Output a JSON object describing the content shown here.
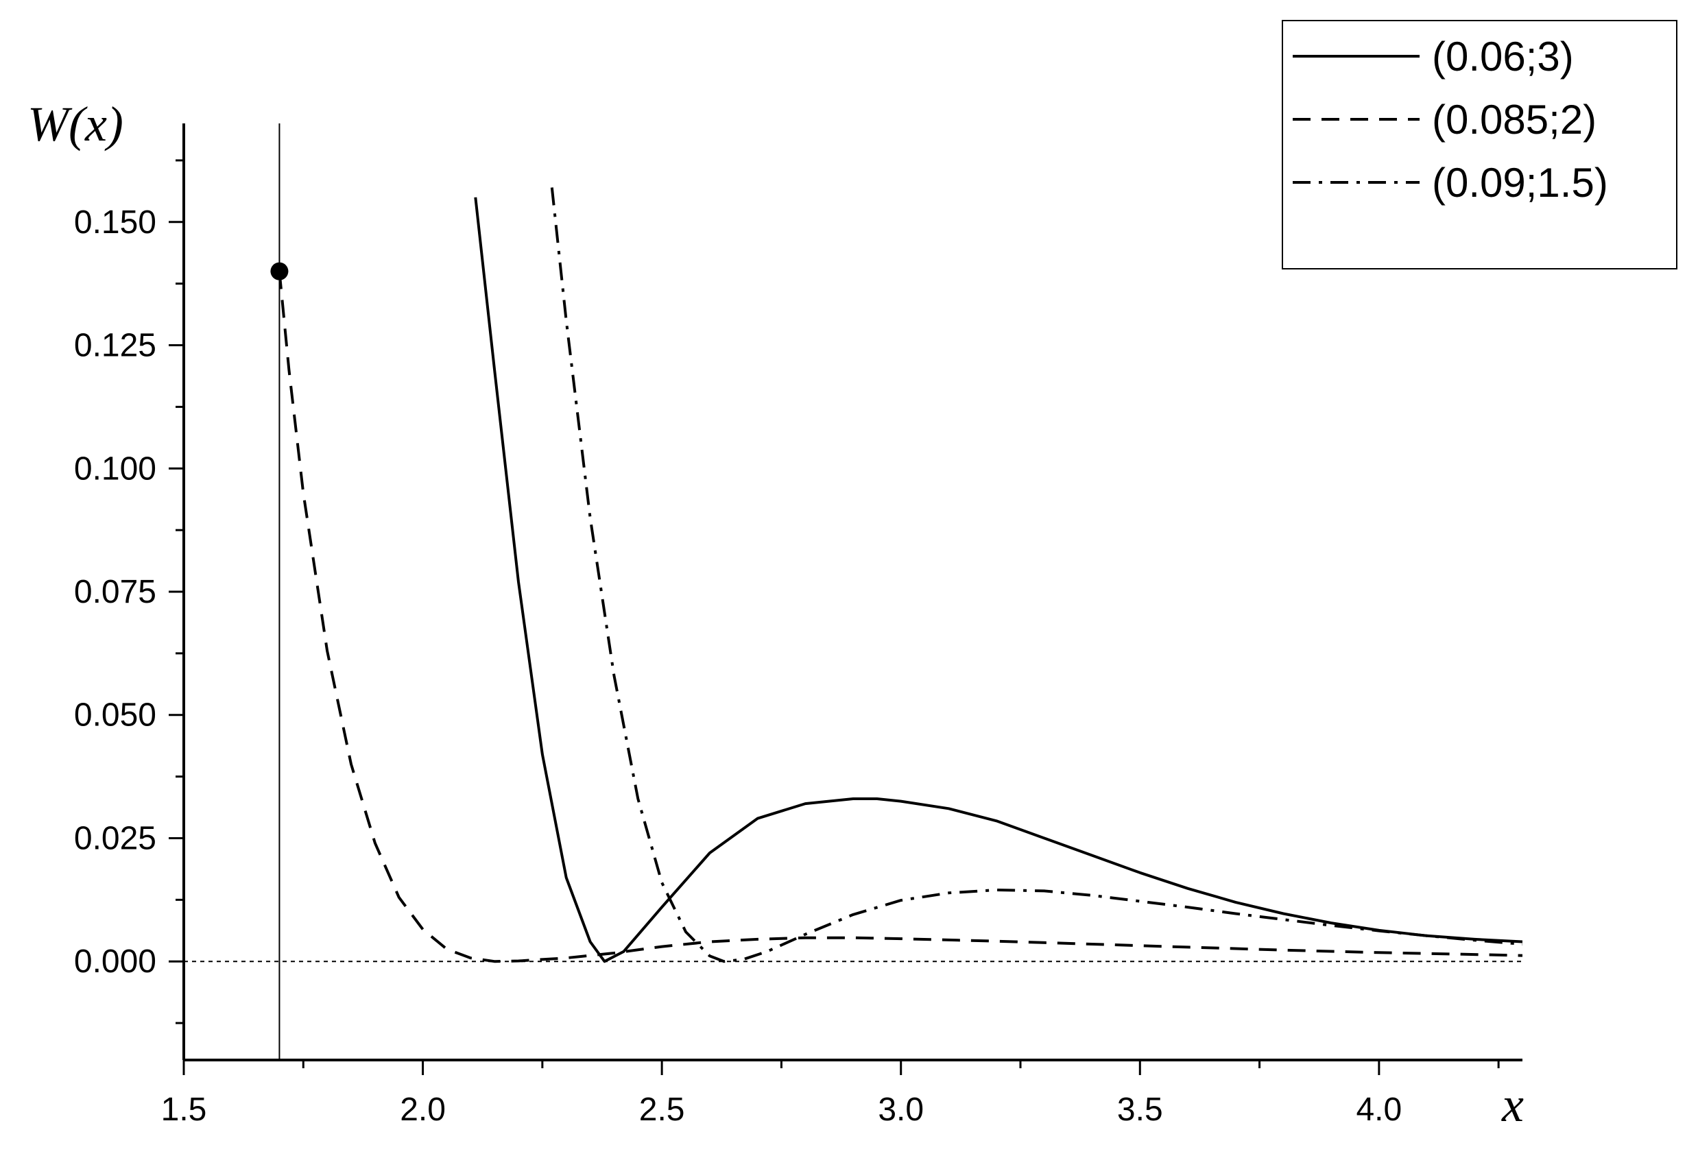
{
  "chart_data": {
    "type": "line",
    "title": "",
    "xlabel": "x",
    "ylabel": "W(x)",
    "xlim": [
      1.5,
      4.3
    ],
    "ylim": [
      -0.02,
      0.17
    ],
    "x_ticks": [
      {
        "value": 1.5,
        "label": "1.5"
      },
      {
        "value": 2.0,
        "label": "2.0"
      },
      {
        "value": 2.5,
        "label": "2.5"
      },
      {
        "value": 3.0,
        "label": "3.0"
      },
      {
        "value": 3.5,
        "label": "3.5"
      },
      {
        "value": 4.0,
        "label": "4.0"
      }
    ],
    "y_ticks": [
      {
        "value": 0.0,
        "label": "0.000"
      },
      {
        "value": 0.025,
        "label": "0.025"
      },
      {
        "value": 0.05,
        "label": "0.050"
      },
      {
        "value": 0.075,
        "label": "0.075"
      },
      {
        "value": 0.1,
        "label": "0.100"
      },
      {
        "value": 0.125,
        "label": "0.125"
      },
      {
        "value": 0.15,
        "label": "0.150"
      }
    ],
    "grid": false,
    "legend_position": "top-right",
    "vertical_line_x": 1.7,
    "zero_line": {
      "y": 0.0,
      "style": "dotted"
    },
    "marker_point": {
      "x": 1.7,
      "y": 0.14
    },
    "series": [
      {
        "name": "(0.06;3)",
        "style": "solid",
        "x": [
          2.11,
          2.15,
          2.2,
          2.25,
          2.3,
          2.35,
          2.38,
          2.42,
          2.5,
          2.6,
          2.7,
          2.8,
          2.9,
          2.95,
          3.0,
          3.1,
          3.2,
          3.3,
          3.4,
          3.5,
          3.6,
          3.7,
          3.8,
          3.9,
          4.0,
          4.1,
          4.2,
          4.3
        ],
        "y": [
          0.155,
          0.12,
          0.077,
          0.042,
          0.017,
          0.004,
          0.0,
          0.002,
          0.011,
          0.022,
          0.029,
          0.032,
          0.033,
          0.033,
          0.0325,
          0.031,
          0.0285,
          0.025,
          0.0215,
          0.018,
          0.0148,
          0.012,
          0.0097,
          0.0078,
          0.0063,
          0.0052,
          0.0045,
          0.004
        ]
      },
      {
        "name": "(0.085;2)",
        "style": "dashed",
        "x": [
          1.7,
          1.72,
          1.75,
          1.8,
          1.85,
          1.9,
          1.95,
          2.0,
          2.05,
          2.1,
          2.15,
          2.2,
          2.3,
          2.4,
          2.5,
          2.6,
          2.7,
          2.8,
          2.9,
          3.0,
          3.2,
          3.4,
          3.6,
          3.8,
          4.0,
          4.2,
          4.3
        ],
        "y": [
          0.14,
          0.12,
          0.095,
          0.063,
          0.04,
          0.024,
          0.013,
          0.0065,
          0.0025,
          0.0007,
          0.0,
          0.0001,
          0.0007,
          0.0017,
          0.003,
          0.004,
          0.0045,
          0.0048,
          0.0048,
          0.0046,
          0.0041,
          0.0035,
          0.0029,
          0.0023,
          0.0018,
          0.0014,
          0.0012
        ]
      },
      {
        "name": "(0.09;1.5)",
        "style": "dashdot",
        "x": [
          2.27,
          2.3,
          2.35,
          2.4,
          2.45,
          2.5,
          2.55,
          2.6,
          2.63,
          2.67,
          2.72,
          2.8,
          2.9,
          3.0,
          3.1,
          3.2,
          3.3,
          3.4,
          3.5,
          3.6,
          3.7,
          3.8,
          3.9,
          4.0,
          4.1,
          4.2,
          4.3
        ],
        "y": [
          0.157,
          0.13,
          0.09,
          0.058,
          0.033,
          0.016,
          0.006,
          0.0011,
          0.0,
          0.0004,
          0.002,
          0.0055,
          0.0095,
          0.0124,
          0.0139,
          0.0145,
          0.0143,
          0.0134,
          0.0122,
          0.011,
          0.0097,
          0.0085,
          0.0073,
          0.0062,
          0.0052,
          0.0043,
          0.0035
        ]
      }
    ]
  }
}
